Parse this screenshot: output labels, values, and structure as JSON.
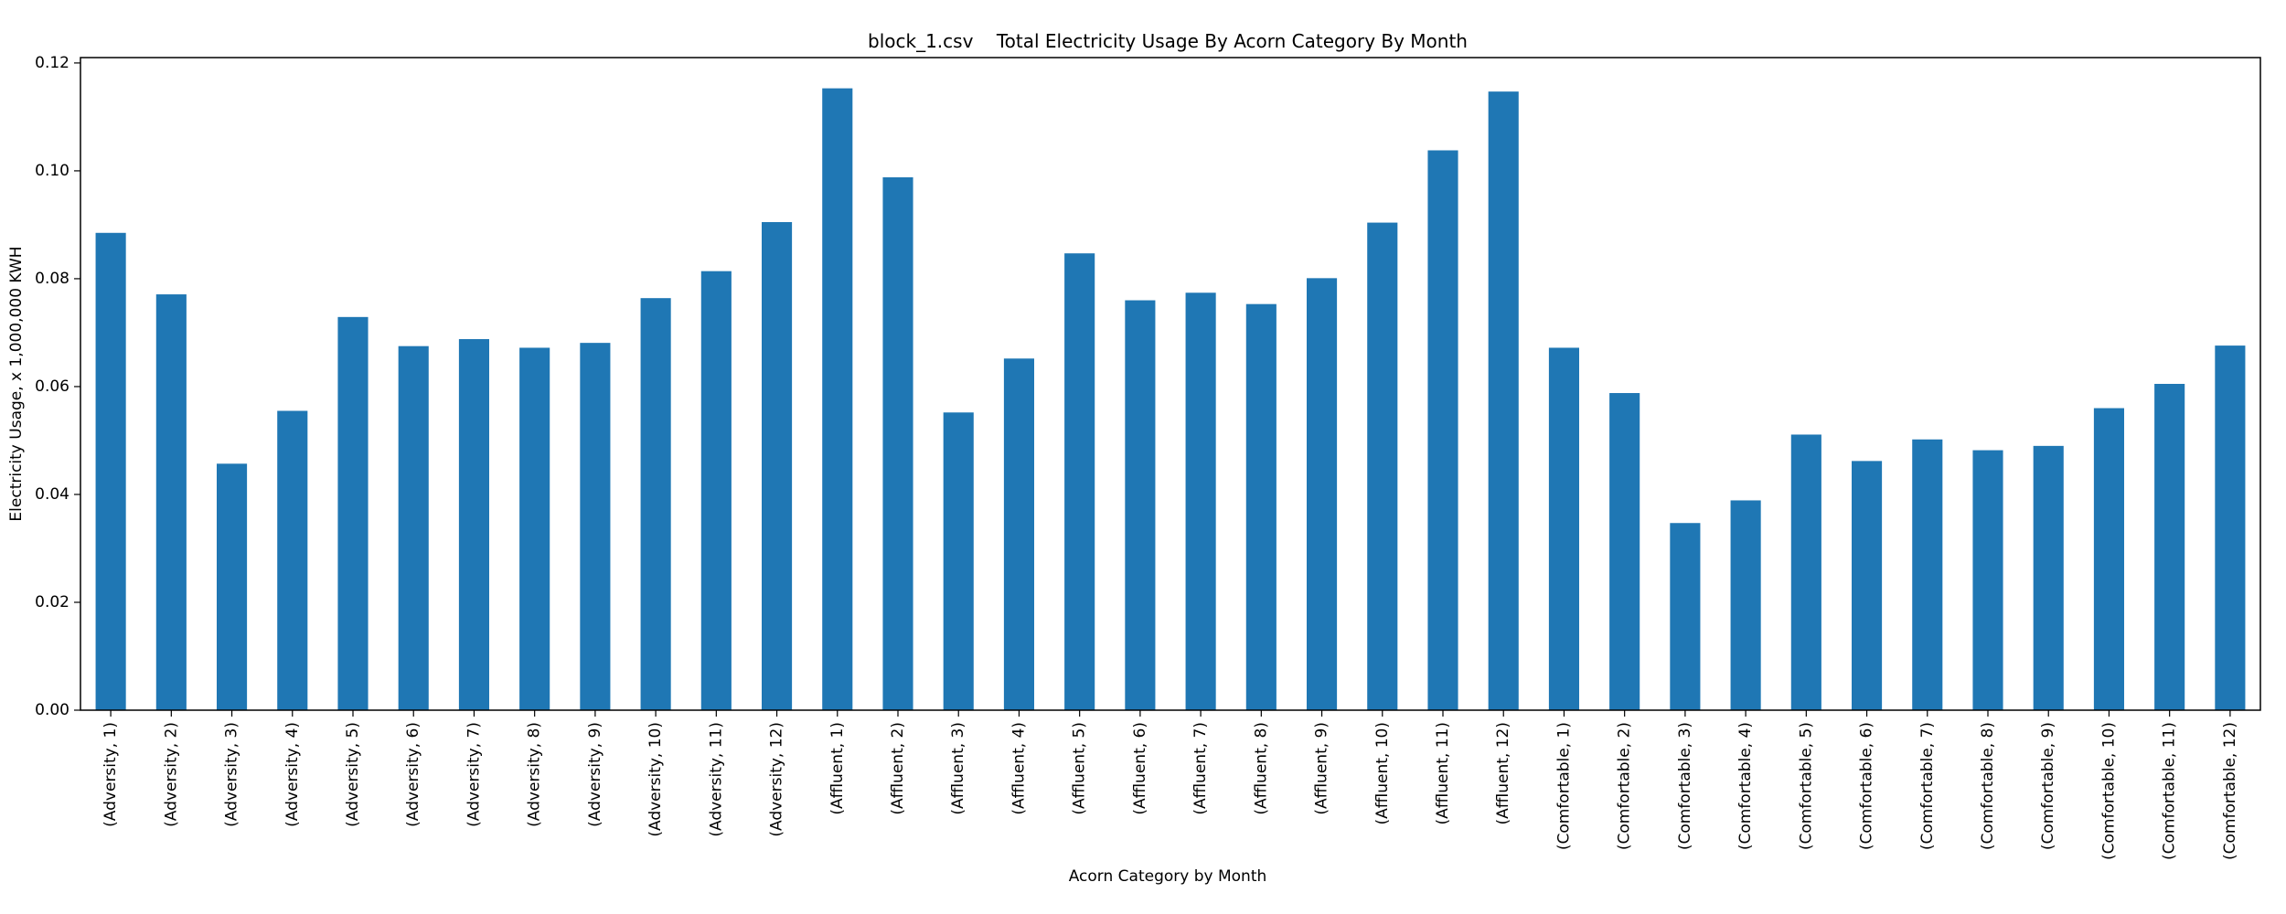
{
  "chart_data": {
    "type": "bar",
    "title": "block_1.csv    Total Electricity Usage By Acorn Category By Month",
    "xlabel": "Acorn Category by Month",
    "ylabel": "Electricity Usage, x 1,000,000 KWH",
    "ylim": [
      0,
      0.121
    ],
    "yticks": [
      "0.00",
      "0.02",
      "0.04",
      "0.06",
      "0.08",
      "0.10",
      "0.12"
    ],
    "grid": false,
    "bar_color": "#1f77b4",
    "categories": [
      "(Adversity, 1)",
      "(Adversity, 2)",
      "(Adversity, 3)",
      "(Adversity, 4)",
      "(Adversity, 5)",
      "(Adversity, 6)",
      "(Adversity, 7)",
      "(Adversity, 8)",
      "(Adversity, 9)",
      "(Adversity, 10)",
      "(Adversity, 11)",
      "(Adversity, 12)",
      "(Affluent, 1)",
      "(Affluent, 2)",
      "(Affluent, 3)",
      "(Affluent, 4)",
      "(Affluent, 5)",
      "(Affluent, 6)",
      "(Affluent, 7)",
      "(Affluent, 8)",
      "(Affluent, 9)",
      "(Affluent, 10)",
      "(Affluent, 11)",
      "(Affluent, 12)",
      "(Comfortable, 1)",
      "(Comfortable, 2)",
      "(Comfortable, 3)",
      "(Comfortable, 4)",
      "(Comfortable, 5)",
      "(Comfortable, 6)",
      "(Comfortable, 7)",
      "(Comfortable, 8)",
      "(Comfortable, 9)",
      "(Comfortable, 10)",
      "(Comfortable, 11)",
      "(Comfortable, 12)"
    ],
    "values": [
      0.0885,
      0.0771,
      0.0457,
      0.0555,
      0.0729,
      0.0675,
      0.0688,
      0.0672,
      0.0681,
      0.0764,
      0.0814,
      0.0905,
      0.1153,
      0.0988,
      0.0552,
      0.0652,
      0.0847,
      0.076,
      0.0774,
      0.0753,
      0.0801,
      0.0904,
      0.1038,
      0.1147,
      0.0672,
      0.0588,
      0.0347,
      0.0389,
      0.0511,
      0.0462,
      0.0502,
      0.0482,
      0.049,
      0.056,
      0.0605,
      0.0676
    ]
  }
}
